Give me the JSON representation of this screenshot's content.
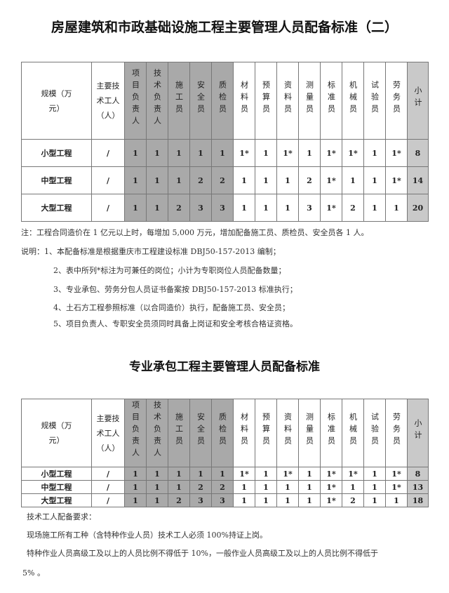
{
  "title1": "房屋建筑和市政基础设施工程主要管理人员配备标准（二）",
  "title2": "专业承包工程主要管理人员配备标准",
  "colors": {
    "shaded_column": "#a9a9a9",
    "subtotal_column": "#c9c9c9"
  },
  "headers": [
    "规模（万元）",
    "主要技术工人（人）",
    "项目负责人",
    "技术负责人",
    "施工员",
    "安全员",
    "质检员",
    "材料员",
    "预算员",
    "资料员",
    "测量员",
    "标准员",
    "机械员",
    "试验员",
    "劳务员",
    "小计"
  ],
  "table1": {
    "rows": [
      [
        "小型工程",
        "/",
        "1",
        "1",
        "1",
        "1",
        "1",
        "1*",
        "1",
        "1*",
        "1",
        "1*",
        "1*",
        "1",
        "1*",
        "8"
      ],
      [
        "中型工程",
        "/",
        "1",
        "1",
        "1",
        "2",
        "2",
        "1",
        "1",
        "1",
        "2",
        "1*",
        "1",
        "1",
        "1*",
        "14"
      ],
      [
        "大型工程",
        "/",
        "1",
        "1",
        "2",
        "3",
        "3",
        "1",
        "1",
        "1",
        "3",
        "1*",
        "2",
        "1",
        "1",
        "20"
      ]
    ]
  },
  "notes1": [
    "注：工程合同造价在 1 亿元以上时，每增加 5,000 万元，增加配备施工员、质检员、安全员各 1 人。",
    "说明：1、本配备标准是根据重庆市工程建设标准 DBJ50-157-2013 编制；",
    "2、表中所列*标注为可兼任的岗位；小计为专职岗位人员配备数量；",
    "3、专业承包、劳务分包人员证书备案按 DBJ50-157-2013 标准执行；",
    "4、土石方工程参照标准（以合同造价）执行，配备施工员、安全员；",
    "5、项目负责人、专职安全员须同时具备上岗证和安全考核合格证资格。"
  ],
  "table2": {
    "rows": [
      [
        "小型工程",
        "/",
        "1",
        "1",
        "1",
        "1",
        "1",
        "1*",
        "1",
        "1*",
        "1",
        "1*",
        "1*",
        "1",
        "1*",
        "8"
      ],
      [
        "中型工程",
        "/",
        "1",
        "1",
        "1",
        "2",
        "2",
        "1",
        "1",
        "1",
        "1",
        "1*",
        "1",
        "1",
        "1*",
        "13"
      ],
      [
        "大型工程",
        "/",
        "1",
        "1",
        "2",
        "3",
        "3",
        "1",
        "1",
        "1",
        "1",
        "1*",
        "2",
        "1",
        "1",
        "18"
      ]
    ]
  },
  "notes2": [
    "技术工人配备要求：",
    "现场施工所有工种（含特种作业人员）技术工人必须 100%持证上岗。",
    "特种作业人员高级工及以上的人员比例不得低于 10%，一般作业人员高级工及以上的人员比例不得低于",
    "5% 。"
  ]
}
